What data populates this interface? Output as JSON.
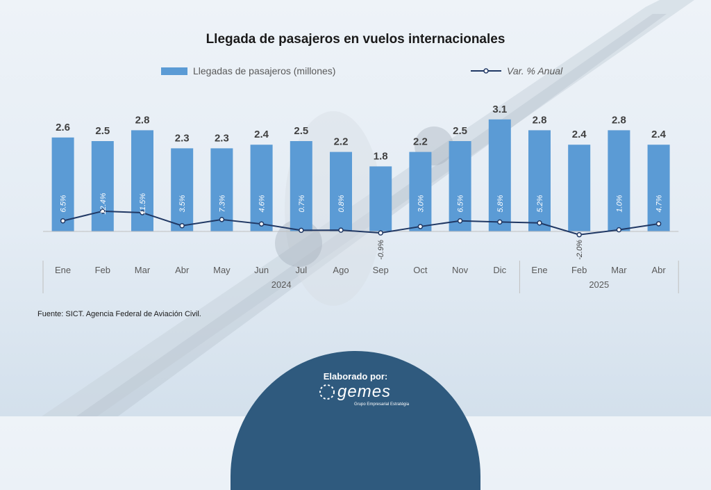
{
  "title": "Llegada de pasajeros en vuelos internacionales",
  "legend": {
    "bars_label": "Llegadas de pasajeros (millones)",
    "line_label": "Var. % Anual"
  },
  "source": "Fuente: SICT. Agencia Federal de Aviación Civil.",
  "footer": {
    "elaborado": "Elaborado por:",
    "logo_text": "gemes",
    "logo_subtitle": "Grupo Empresarial Estratégia"
  },
  "colors": {
    "bar": "#5b9bd5",
    "line": "#203864",
    "footer": "#2f5a7e"
  },
  "chart_data": {
    "type": "bar",
    "title": "Llegada de pasajeros en vuelos internacionales",
    "categories": [
      "Ene",
      "Feb",
      "Mar",
      "Abr",
      "May",
      "Jun",
      "Jul",
      "Ago",
      "Sep",
      "Oct",
      "Nov",
      "Dic",
      "Ene",
      "Feb",
      "Mar",
      "Abr"
    ],
    "groups": [
      {
        "label": "2024",
        "start": 0,
        "end": 11
      },
      {
        "label": "2025",
        "start": 12,
        "end": 15
      }
    ],
    "series": [
      {
        "name": "Llegadas de pasajeros (millones)",
        "type": "bar",
        "values": [
          2.6,
          2.5,
          2.8,
          2.3,
          2.3,
          2.4,
          2.5,
          2.2,
          1.8,
          2.2,
          2.5,
          3.1,
          2.8,
          2.4,
          2.8,
          2.4
        ],
        "labels": [
          "2.6",
          "2.5",
          "2.8",
          "2.3",
          "2.3",
          "2.4",
          "2.5",
          "2.2",
          "1.8",
          "2.2",
          "2.5",
          "3.1",
          "2.8",
          "2.4",
          "2.8",
          "2.4"
        ]
      },
      {
        "name": "Var. % Anual",
        "type": "line",
        "values": [
          6.5,
          12.4,
          11.5,
          3.5,
          7.3,
          4.6,
          0.7,
          0.8,
          -0.9,
          3.0,
          6.5,
          5.8,
          5.2,
          -2.0,
          1.0,
          4.7
        ],
        "labels": [
          "6.5%",
          "12.4%",
          "11.5%",
          "3.5%",
          "7.3%",
          "4.6%",
          "0.7%",
          "0.8%",
          "-0.9%",
          "3.0%",
          "6.5%",
          "5.8%",
          "5.2%",
          "-2.0%",
          "1.0%",
          "4.7%"
        ]
      }
    ],
    "legend_position": "top",
    "grid": false
  }
}
